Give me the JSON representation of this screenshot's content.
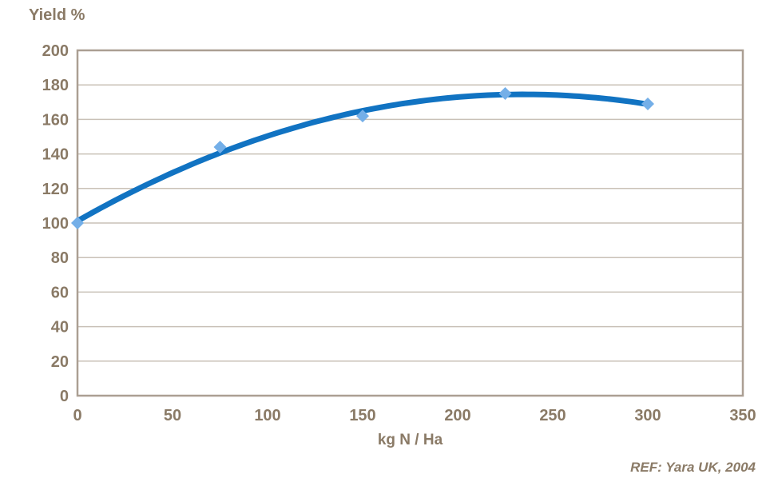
{
  "page": {
    "background": "#ffffff"
  },
  "chart_data": {
    "type": "scatter",
    "title": "Yield %",
    "xlabel": "kg N / Ha",
    "ylabel": "Yield %",
    "x": [
      0,
      75,
      150,
      225,
      300
    ],
    "y": [
      100,
      144,
      162,
      175,
      169
    ],
    "trendline": {
      "type": "polynomial",
      "order": 2,
      "coefficients": {
        "a": 101.2,
        "b": 0.62533,
        "c": -0.0013333
      },
      "x_range": [
        0,
        300
      ]
    },
    "xlim": [
      0,
      350
    ],
    "ylim": [
      0,
      200
    ],
    "xticks": [
      0,
      50,
      100,
      150,
      200,
      250,
      300,
      350
    ],
    "yticks": [
      0,
      20,
      40,
      60,
      80,
      100,
      120,
      140,
      160,
      180,
      200
    ],
    "grid": "horizontal",
    "legend": "none",
    "colors": {
      "line": "#1173c2",
      "marker": "#74afe8",
      "axis_text": "#8a7a66",
      "border": "#ab9f93",
      "gridline": "#c9c1b7"
    }
  },
  "footer": {
    "reference": "REF: Yara UK, 2004"
  }
}
